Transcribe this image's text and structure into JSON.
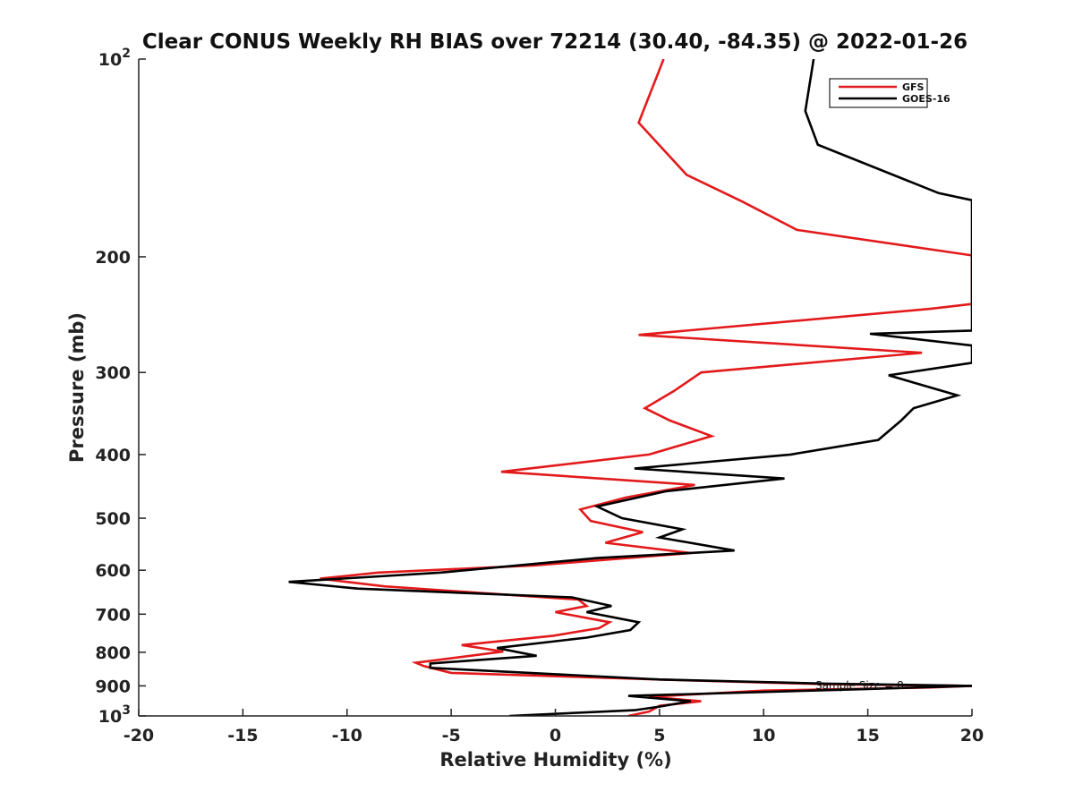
{
  "chart_data": {
    "type": "line",
    "title": "Clear CONUS Weekly RH BIAS over 72214 (30.40, -84.35) @ 2022-01-26",
    "xlabel": "Relative Humidity (%)",
    "ylabel": "Pressure (mb)",
    "xlim": [
      -20,
      20
    ],
    "ylim": [
      100,
      1000
    ],
    "yscale": "log",
    "y_reversed": true,
    "grid": false,
    "legend_position": "top-right",
    "xticks": [
      -20,
      -15,
      -10,
      -5,
      0,
      5,
      10,
      15,
      20
    ],
    "xtick_labels": [
      "-20",
      "-15",
      "-10",
      "-5",
      "0",
      "5",
      "10",
      "15",
      "20"
    ],
    "yticks": [
      100,
      200,
      300,
      400,
      500,
      600,
      700,
      800,
      900,
      1000
    ],
    "ytick_labels": [
      {
        "base": "10",
        "exp": "2"
      },
      {
        "base": "200",
        "exp": ""
      },
      {
        "base": "300",
        "exp": ""
      },
      {
        "base": "400",
        "exp": ""
      },
      {
        "base": "500",
        "exp": ""
      },
      {
        "base": "600",
        "exp": ""
      },
      {
        "base": "700",
        "exp": ""
      },
      {
        "base": "800",
        "exp": ""
      },
      {
        "base": "900",
        "exp": ""
      },
      {
        "base": "10",
        "exp": "3"
      }
    ],
    "annotation": "Sample Size = 8",
    "series": [
      {
        "name": "GFS",
        "color": "#e31a1c",
        "points": [
          [
            5.2,
            100
          ],
          [
            4.0,
            125
          ],
          [
            6.3,
            150
          ],
          [
            9.0,
            165
          ],
          [
            11.6,
            182
          ],
          [
            20.0,
            199
          ],
          [
            20.0,
            236
          ],
          [
            18.0,
            240
          ],
          [
            4.0,
            263
          ],
          [
            17.6,
            280
          ],
          [
            7.0,
            300
          ],
          [
            5.7,
            320
          ],
          [
            4.3,
            340
          ],
          [
            5.5,
            355
          ],
          [
            7.5,
            375
          ],
          [
            4.5,
            400
          ],
          [
            -2.6,
            425
          ],
          [
            6.7,
            445
          ],
          [
            3.4,
            465
          ],
          [
            1.2,
            485
          ],
          [
            1.7,
            505
          ],
          [
            4.2,
            525
          ],
          [
            2.4,
            545
          ],
          [
            6.5,
            565
          ],
          [
            -1.0,
            590
          ],
          [
            -8.5,
            605
          ],
          [
            -11.3,
            618
          ],
          [
            -8.2,
            635
          ],
          [
            1.1,
            665
          ],
          [
            1.5,
            680
          ],
          [
            0.0,
            695
          ],
          [
            2.6,
            720
          ],
          [
            2.1,
            735
          ],
          [
            -0.1,
            755
          ],
          [
            -4.5,
            780
          ],
          [
            -2.5,
            798
          ],
          [
            -6.7,
            830
          ],
          [
            -6.3,
            840
          ],
          [
            -5.0,
            860
          ],
          [
            5.0,
            880
          ],
          [
            13.0,
            895
          ],
          [
            20.0,
            900
          ],
          [
            18.0,
            905
          ],
          [
            10.0,
            915
          ],
          [
            4.5,
            935
          ],
          [
            7.0,
            950
          ],
          [
            5.0,
            965
          ],
          [
            4.5,
            985
          ],
          [
            3.5,
            1000
          ]
        ]
      },
      {
        "name": "GOES-16",
        "color": "#000000",
        "points": [
          [
            12.4,
            100
          ],
          [
            12.0,
            120
          ],
          [
            12.6,
            135
          ],
          [
            18.4,
            160
          ],
          [
            20.0,
            164
          ],
          [
            20.0,
            259
          ],
          [
            15.1,
            262
          ],
          [
            20.0,
            273
          ],
          [
            20.0,
            290
          ],
          [
            16.0,
            303
          ],
          [
            19.3,
            325
          ],
          [
            17.2,
            340
          ],
          [
            16.6,
            355
          ],
          [
            15.5,
            380
          ],
          [
            11.3,
            400
          ],
          [
            3.8,
            420
          ],
          [
            11.0,
            435
          ],
          [
            5.3,
            455
          ],
          [
            2.0,
            480
          ],
          [
            3.2,
            500
          ],
          [
            6.1,
            520
          ],
          [
            5.0,
            535
          ],
          [
            8.6,
            560
          ],
          [
            2.0,
            575
          ],
          [
            -5.5,
            605
          ],
          [
            -12.8,
            625
          ],
          [
            -9.5,
            640
          ],
          [
            0.8,
            660
          ],
          [
            2.7,
            680
          ],
          [
            1.5,
            695
          ],
          [
            4.0,
            720
          ],
          [
            3.6,
            740
          ],
          [
            1.5,
            760
          ],
          [
            -2.8,
            788
          ],
          [
            -0.9,
            810
          ],
          [
            -6.0,
            832
          ],
          [
            -6.0,
            845
          ],
          [
            5.0,
            880
          ],
          [
            13.0,
            893
          ],
          [
            20.0,
            900
          ],
          [
            15.0,
            910
          ],
          [
            3.5,
            932
          ],
          [
            6.5,
            950
          ],
          [
            5.0,
            968
          ],
          [
            3.8,
            980
          ],
          [
            -2.2,
            1000
          ]
        ]
      }
    ]
  }
}
